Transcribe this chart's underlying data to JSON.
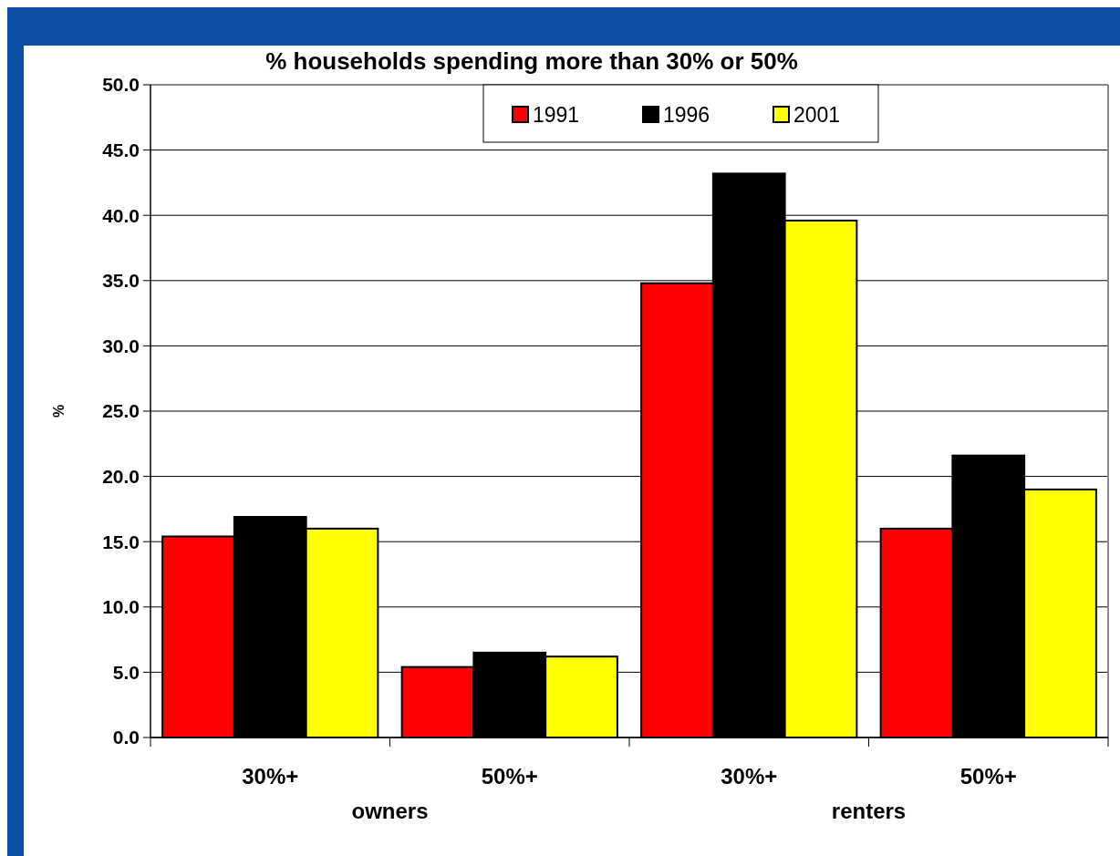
{
  "chart_data": {
    "type": "bar",
    "title": "% households spending  more than 30% or 50%",
    "ylabel": "%",
    "categories": [
      "30%+",
      "50%+",
      "30%+",
      "50%+"
    ],
    "series": [
      {
        "name": "1991",
        "color": "#ff0000",
        "values": [
          15.4,
          5.4,
          34.8,
          16.0
        ]
      },
      {
        "name": "1996",
        "color": "#000000",
        "values": [
          16.9,
          6.5,
          43.2,
          21.6
        ]
      },
      {
        "name": "2001",
        "color": "#ffff00",
        "values": [
          16.0,
          6.2,
          39.6,
          19.0
        ]
      }
    ],
    "ylim": [
      0,
      50
    ],
    "yticks": [
      {
        "value": 0,
        "label": "0.0"
      },
      {
        "value": 5,
        "label": "5.0"
      },
      {
        "value": 10,
        "label": "10.0"
      },
      {
        "value": 15,
        "label": "15.0"
      },
      {
        "value": 20,
        "label": "20.0"
      },
      {
        "value": 25,
        "label": "25.0"
      },
      {
        "value": 30,
        "label": "30.0"
      },
      {
        "value": 35,
        "label": "35.0"
      },
      {
        "value": 40,
        "label": "40.0"
      },
      {
        "value": 45,
        "label": "45.0"
      },
      {
        "value": 50,
        "label": "50.0"
      }
    ],
    "grid": "y",
    "legend": "top",
    "annotations": [
      "owners",
      "renters"
    ]
  }
}
